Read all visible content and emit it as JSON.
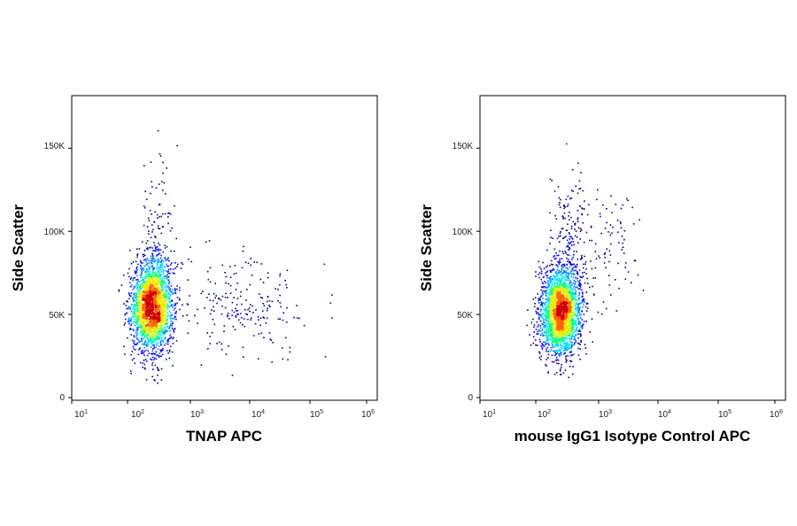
{
  "chart_data": [
    {
      "type": "scatter",
      "title": "",
      "xlabel": "TNAP APC",
      "ylabel": "Side Scatter",
      "x_scale": "log",
      "xlim": [
        10,
        1000000
      ],
      "ylim": [
        0,
        180000
      ],
      "x_ticks": [
        {
          "base": "10",
          "exp": "1"
        },
        {
          "base": "10",
          "exp": "2"
        },
        {
          "base": "10",
          "exp": "3"
        },
        {
          "base": "10",
          "exp": "4"
        },
        {
          "base": "10",
          "exp": "5"
        },
        {
          "base": "10",
          "exp": "6"
        }
      ],
      "y_ticks": [
        {
          "value": 0,
          "label": "0"
        },
        {
          "value": 50000,
          "label": "50K"
        },
        {
          "value": 100000,
          "label": "100K"
        },
        {
          "value": 150000,
          "label": "150K"
        }
      ],
      "populations": [
        {
          "x_center": 240,
          "y_center": 55000,
          "log_x_sd": 0.17,
          "y_sd": 14000,
          "share": 0.86
        },
        {
          "x_center": 300,
          "y_center": 90000,
          "log_x_sd": 0.14,
          "y_sd": 22000,
          "share": 0.06
        },
        {
          "x_center": 8000,
          "y_center": 55000,
          "log_x_sd": 0.5,
          "y_sd": 17000,
          "share": 0.08
        }
      ],
      "density_colors": [
        "#00008b",
        "#0000ff",
        "#0080ff",
        "#00e0ff",
        "#00ff80",
        "#c8ff00",
        "#ffe000",
        "#ff6000",
        "#d00000"
      ],
      "grid": false
    },
    {
      "type": "scatter",
      "title": "",
      "xlabel": "mouse IgG1 Isotype Control APC",
      "ylabel": "Side Scatter",
      "x_scale": "log",
      "xlim": [
        10,
        1000000
      ],
      "ylim": [
        0,
        180000
      ],
      "x_ticks": [
        {
          "base": "10",
          "exp": "1"
        },
        {
          "base": "10",
          "exp": "2"
        },
        {
          "base": "10",
          "exp": "3"
        },
        {
          "base": "10",
          "exp": "4"
        },
        {
          "base": "10",
          "exp": "5"
        },
        {
          "base": "10",
          "exp": "6"
        }
      ],
      "y_ticks": [
        {
          "value": 0,
          "label": "0"
        },
        {
          "value": 50000,
          "label": "50K"
        },
        {
          "value": 100000,
          "label": "100K"
        },
        {
          "value": 150000,
          "label": "150K"
        }
      ],
      "populations": [
        {
          "x_center": 240,
          "y_center": 52000,
          "log_x_sd": 0.16,
          "y_sd": 13000,
          "share": 0.88
        },
        {
          "x_center": 330,
          "y_center": 90000,
          "log_x_sd": 0.15,
          "y_sd": 22000,
          "share": 0.08
        },
        {
          "x_center": 1200,
          "y_center": 90000,
          "log_x_sd": 0.3,
          "y_sd": 25000,
          "share": 0.04
        }
      ],
      "density_colors": [
        "#00008b",
        "#0000ff",
        "#0080ff",
        "#00e0ff",
        "#00ff80",
        "#c8ff00",
        "#ffe000",
        "#ff6000",
        "#d00000"
      ],
      "grid": false
    }
  ]
}
